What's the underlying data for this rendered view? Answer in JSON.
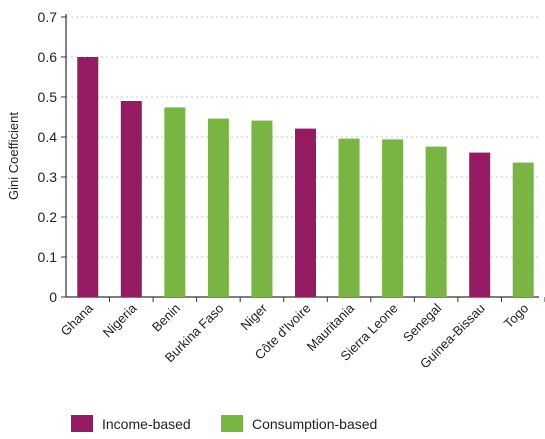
{
  "chart_data": {
    "type": "bar",
    "title": "",
    "xlabel": "",
    "ylabel": "Gini Coefficient",
    "ylim": [
      0,
      0.7
    ],
    "yticks": [
      "0",
      "0.1",
      "0.2",
      "0.3",
      "0.4",
      "0.5",
      "0.6",
      "0.7"
    ],
    "grid": "horizontal dotted",
    "legend_position": "bottom",
    "categories": [
      "Ghana",
      "Nigeria",
      "Benin",
      "Burkina Faso",
      "Niger",
      "Côte d'Ivoire",
      "Mauritania",
      "Sierra Leone",
      "Senegal",
      "Guinea-Bissau",
      "Togo"
    ],
    "values": [
      0.6,
      0.49,
      0.474,
      0.446,
      0.441,
      0.421,
      0.396,
      0.394,
      0.376,
      0.361,
      0.336
    ],
    "measure": [
      "Income-based",
      "Income-based",
      "Consumption-based",
      "Consumption-based",
      "Consumption-based",
      "Income-based",
      "Consumption-based",
      "Consumption-based",
      "Consumption-based",
      "Income-based",
      "Consumption-based"
    ],
    "legend": [
      {
        "label": "Income-based",
        "color": "#951b62"
      },
      {
        "label": "Consumption-based",
        "color": "#78b543"
      }
    ]
  }
}
